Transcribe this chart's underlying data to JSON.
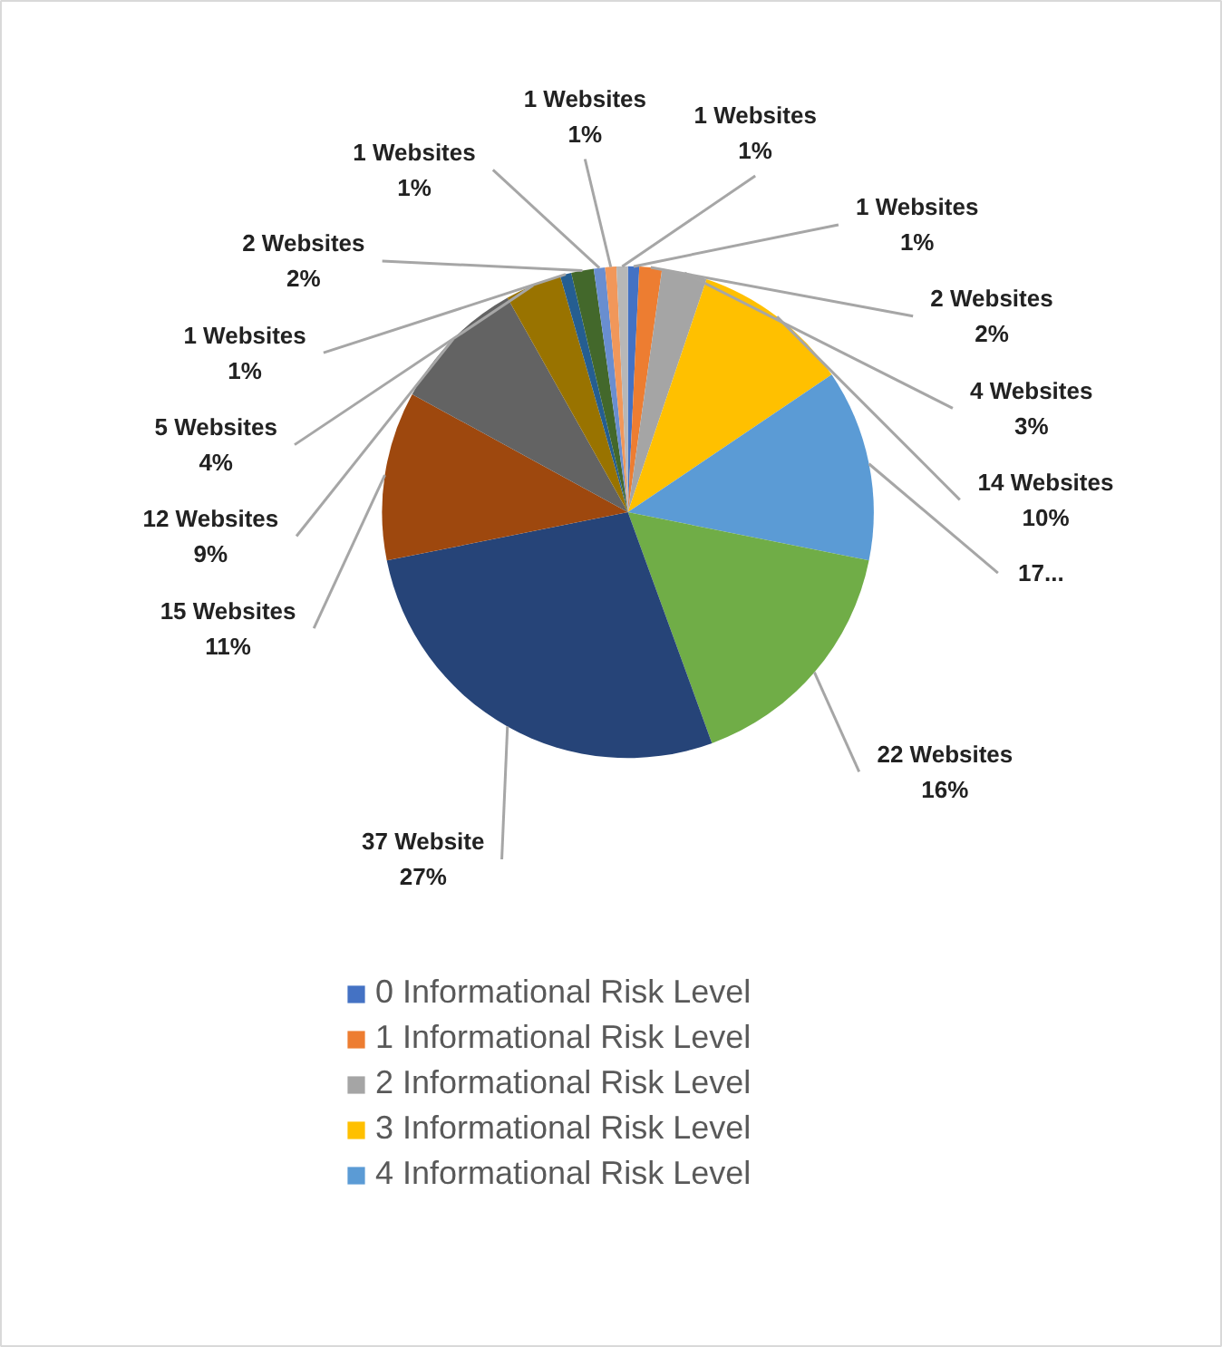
{
  "chart_data": {
    "type": "pie",
    "categories": [
      "0 Informational Risk Level",
      "1 Informational Risk Level",
      "2 Informational Risk Level",
      "3 Informational Risk Level",
      "4 Informational Risk Level",
      null,
      null,
      null,
      null,
      null,
      null,
      null,
      null,
      null,
      null
    ],
    "values": [
      1,
      2,
      4,
      14,
      17,
      22,
      37,
      15,
      12,
      5,
      1,
      2,
      1,
      1,
      1
    ],
    "colors": [
      "#4472c4",
      "#ed7d31",
      "#a5a5a5",
      "#ffc000",
      "#5b9bd5",
      "#70ad47",
      "#264478",
      "#9e480e",
      "#636363",
      "#997300",
      "#255e91",
      "#43682b",
      "#698ed0",
      "#f1975a",
      "#b7b7b7"
    ],
    "value_labels": [
      "1 Websites\n1%",
      "2 Websites\n2%",
      "4 Websites\n3%",
      "14 Websites\n10%",
      "17...",
      "22 Websites\n16%",
      "37 Website\n27%",
      "15 Websites\n11%",
      "12 Websites\n9%",
      "5 Websites\n4%",
      "1 Websites\n1%",
      "2 Websites\n2%",
      "1 Websites\n1%",
      "1 Websites\n1%",
      "1 Websites\n1%"
    ],
    "legend": "bottom"
  }
}
